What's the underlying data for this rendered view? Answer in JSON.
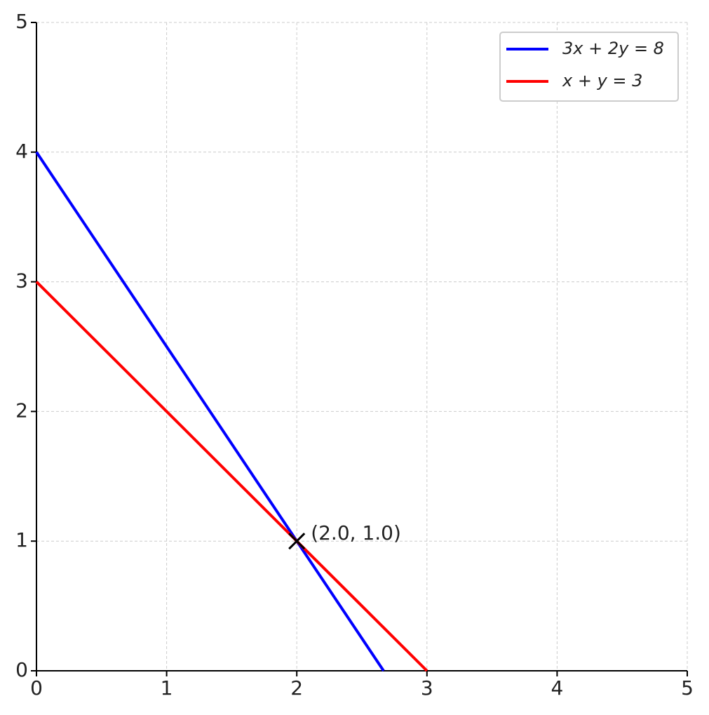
{
  "chart_data": {
    "type": "line",
    "x": [
      0,
      2.667,
      3
    ],
    "series": [
      {
        "name": "3x + 2y = 8",
        "color": "#0000ff",
        "values": [
          4,
          0,
          null
        ]
      },
      {
        "name": "x + y = 3",
        "color": "#ff0000",
        "values": [
          3,
          0.333,
          0
        ]
      }
    ],
    "annotations": [
      {
        "text": "(2.0, 1.0)",
        "x": 2,
        "y": 1
      }
    ],
    "xlim": [
      0,
      5
    ],
    "ylim": [
      0,
      5
    ],
    "xticks": [
      0,
      1,
      2,
      3,
      4,
      5
    ],
    "yticks": [
      0,
      1,
      2,
      3,
      4,
      5
    ],
    "grid": true,
    "legend": "upper right"
  }
}
